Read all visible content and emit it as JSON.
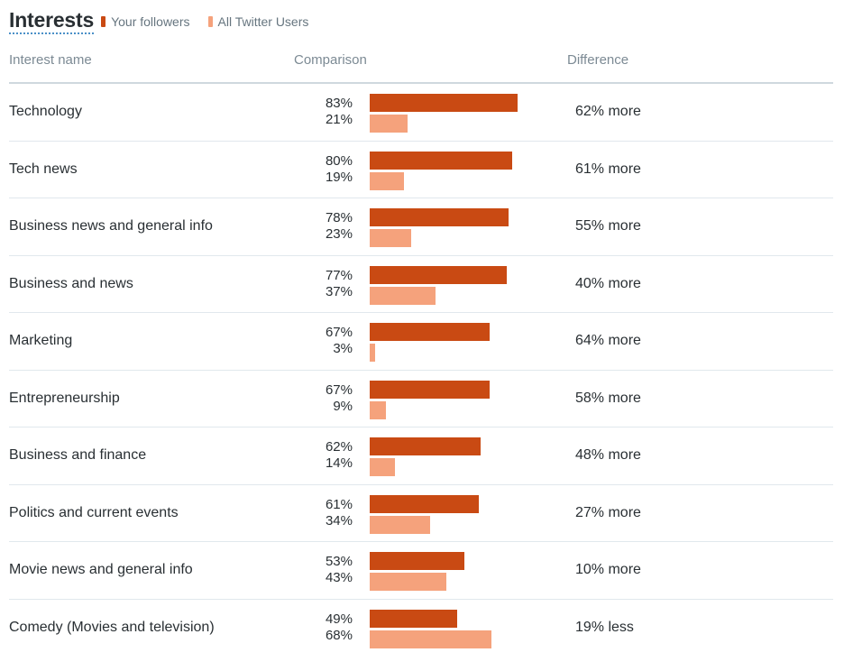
{
  "header": {
    "title": "Interests",
    "legend": [
      {
        "label": "Your followers",
        "color": "#c94a13"
      },
      {
        "label": "All Twitter Users",
        "color": "#f5a27c"
      }
    ]
  },
  "columns": {
    "name": "Interest name",
    "comparison": "Comparison",
    "difference": "Difference"
  },
  "chart_data": {
    "type": "bar",
    "title": "Interests",
    "series": [
      {
        "name": "Your followers",
        "values": [
          83,
          80,
          78,
          77,
          67,
          67,
          62,
          61,
          53,
          49
        ]
      },
      {
        "name": "All Twitter Users",
        "values": [
          21,
          19,
          23,
          37,
          3,
          9,
          14,
          34,
          43,
          68
        ]
      }
    ],
    "categories": [
      "Technology",
      "Tech news",
      "Business news and general info",
      "Business and news",
      "Marketing",
      "Entrepreneurship",
      "Business and finance",
      "Politics and current events",
      "Movie news and general info",
      "Comedy (Movies and television)"
    ],
    "rows": [
      {
        "name": "Technology",
        "followers": "83%",
        "all": "21%",
        "difference": "62% more"
      },
      {
        "name": "Tech news",
        "followers": "80%",
        "all": "19%",
        "difference": "61% more"
      },
      {
        "name": "Business news and general info",
        "followers": "78%",
        "all": "23%",
        "difference": "55% more"
      },
      {
        "name": "Business and news",
        "followers": "77%",
        "all": "37%",
        "difference": "40% more"
      },
      {
        "name": "Marketing",
        "followers": "67%",
        "all": "3%",
        "difference": "64% more"
      },
      {
        "name": "Entrepreneurship",
        "followers": "67%",
        "all": "9%",
        "difference": "58% more"
      },
      {
        "name": "Business and finance",
        "followers": "62%",
        "all": "14%",
        "difference": "48% more"
      },
      {
        "name": "Politics and current events",
        "followers": "61%",
        "all": "34%",
        "difference": "27% more"
      },
      {
        "name": "Movie news and general info",
        "followers": "53%",
        "all": "43%",
        "difference": "10% more"
      },
      {
        "name": "Comedy (Movies and television)",
        "followers": "49%",
        "all": "68%",
        "difference": "19% less"
      }
    ],
    "xlim": [
      0,
      100
    ]
  }
}
